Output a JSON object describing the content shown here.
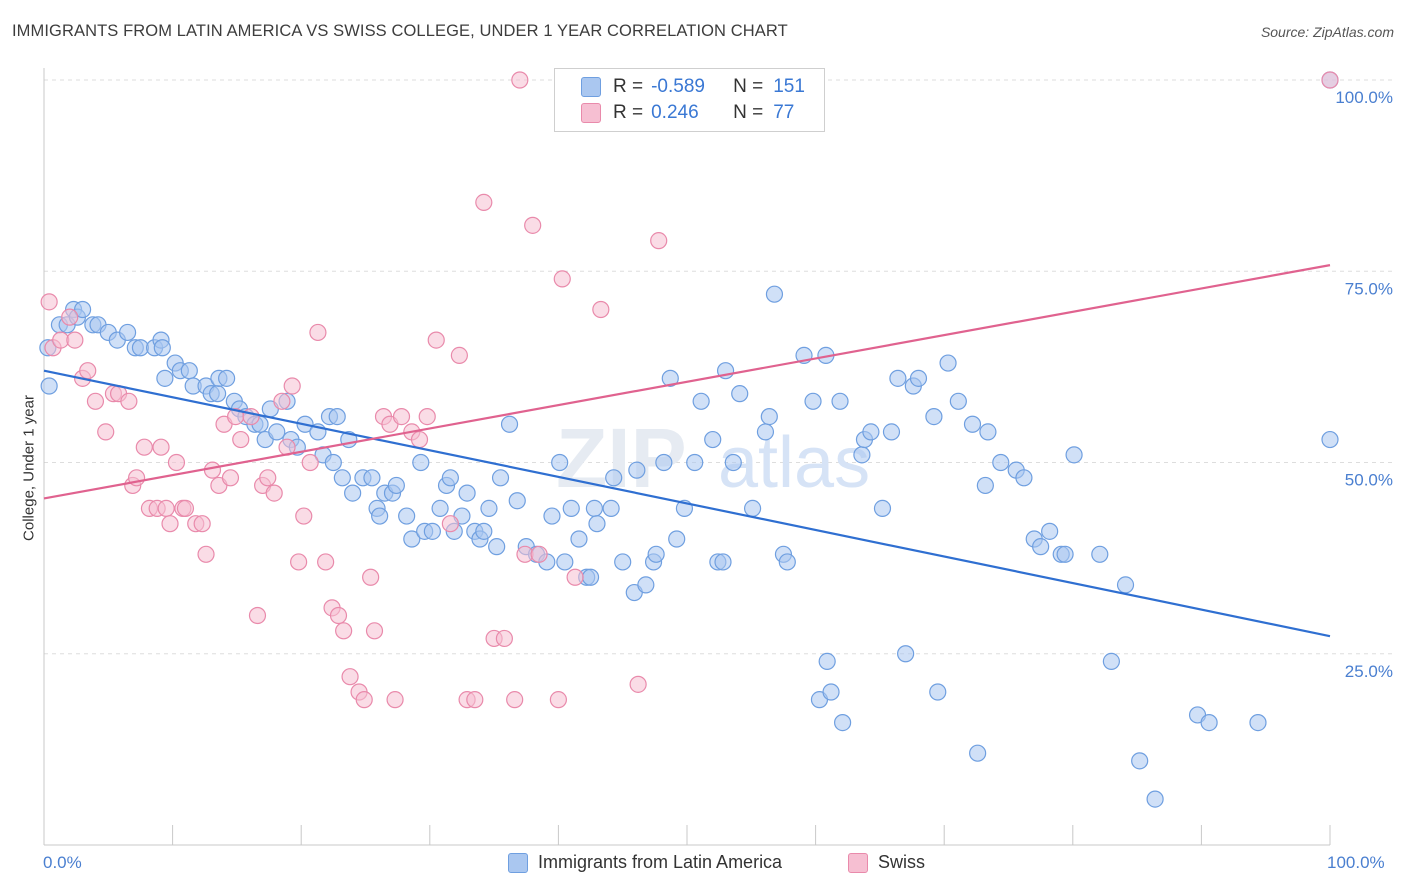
{
  "header": {
    "title": "IMMIGRANTS FROM LATIN AMERICA VS SWISS COLLEGE, UNDER 1 YEAR CORRELATION CHART",
    "source": "Source: ZipAtlas.com"
  },
  "watermark": {
    "zip": "ZIP",
    "atlas": "atlas"
  },
  "legend": {
    "r_label": "R =",
    "n_label": "N =",
    "rows": [
      {
        "r": "-0.589",
        "n": "151"
      },
      {
        "r": "0.246",
        "n": "77"
      }
    ]
  },
  "axes": {
    "x_min_label": "0.0%",
    "x_max_label": "100.0%"
  },
  "colors": {
    "blue_fill": "#aac7f0",
    "blue_stroke": "#6f9fe0",
    "blue_line": "#2f6fd1",
    "pink_fill": "#f6bfd2",
    "pink_stroke": "#e98aab",
    "pink_line": "#e0628f",
    "grid": "#dddddd",
    "tick_label": "#4a7fd0"
  },
  "chart_data": {
    "type": "scatter",
    "title": "IMMIGRANTS FROM LATIN AMERICA VS SWISS COLLEGE, UNDER 1 YEAR CORRELATION CHART",
    "xlabel": "",
    "ylabel": "College, Under 1 year",
    "xlim": [
      0,
      100
    ],
    "ylim": [
      0,
      100
    ],
    "y_ticks": [
      {
        "value": 25,
        "label": "25.0%"
      },
      {
        "value": 50,
        "label": "50.0%"
      },
      {
        "value": 75,
        "label": "75.0%"
      },
      {
        "value": 100,
        "label": "100.0%"
      }
    ],
    "grid": true,
    "legend_placement": "top-center",
    "series": [
      {
        "name": "Immigrants from Latin America",
        "color": "blue",
        "r": -0.589,
        "n": 151,
        "trend": {
          "x": [
            0,
            100
          ],
          "y": [
            62.0,
            27.3
          ]
        },
        "points": [
          [
            0.3,
            65
          ],
          [
            0.4,
            60
          ],
          [
            1.2,
            68
          ],
          [
            1.8,
            68
          ],
          [
            2.3,
            70
          ],
          [
            2.6,
            69
          ],
          [
            3.0,
            70
          ],
          [
            3.8,
            68
          ],
          [
            4.2,
            68
          ],
          [
            5.0,
            67
          ],
          [
            5.7,
            66
          ],
          [
            6.5,
            67
          ],
          [
            7.1,
            65
          ],
          [
            7.5,
            65
          ],
          [
            8.6,
            65
          ],
          [
            9.1,
            66
          ],
          [
            9.2,
            65
          ],
          [
            9.4,
            61
          ],
          [
            10.2,
            63
          ],
          [
            10.6,
            62
          ],
          [
            11.3,
            62
          ],
          [
            11.6,
            60
          ],
          [
            12.6,
            60
          ],
          [
            13.0,
            59
          ],
          [
            13.5,
            59
          ],
          [
            13.6,
            61
          ],
          [
            14.2,
            61
          ],
          [
            14.8,
            58
          ],
          [
            15.2,
            57
          ],
          [
            15.7,
            56
          ],
          [
            16.4,
            55
          ],
          [
            16.8,
            55
          ],
          [
            17.2,
            53
          ],
          [
            17.6,
            57
          ],
          [
            18.1,
            54
          ],
          [
            18.9,
            58
          ],
          [
            19.2,
            53
          ],
          [
            19.7,
            52
          ],
          [
            20.3,
            55
          ],
          [
            21.3,
            54
          ],
          [
            21.7,
            51
          ],
          [
            22.2,
            56
          ],
          [
            22.5,
            50
          ],
          [
            22.8,
            56
          ],
          [
            23.2,
            48
          ],
          [
            23.7,
            53
          ],
          [
            24.0,
            46
          ],
          [
            24.8,
            48
          ],
          [
            25.5,
            48
          ],
          [
            25.9,
            44
          ],
          [
            26.1,
            43
          ],
          [
            26.5,
            46
          ],
          [
            27.1,
            46
          ],
          [
            27.4,
            47
          ],
          [
            28.2,
            43
          ],
          [
            28.6,
            40
          ],
          [
            29.3,
            50
          ],
          [
            29.6,
            41
          ],
          [
            30.2,
            41
          ],
          [
            30.8,
            44
          ],
          [
            31.3,
            47
          ],
          [
            31.6,
            48
          ],
          [
            31.9,
            41
          ],
          [
            32.5,
            43
          ],
          [
            32.9,
            46
          ],
          [
            33.5,
            41
          ],
          [
            33.9,
            40
          ],
          [
            34.2,
            41
          ],
          [
            34.6,
            44
          ],
          [
            35.2,
            39
          ],
          [
            35.5,
            48
          ],
          [
            36.2,
            55
          ],
          [
            36.8,
            45
          ],
          [
            37.5,
            39
          ],
          [
            38.3,
            38
          ],
          [
            39.1,
            37
          ],
          [
            39.5,
            43
          ],
          [
            40.1,
            50
          ],
          [
            40.5,
            37
          ],
          [
            41.0,
            44
          ],
          [
            41.6,
            40
          ],
          [
            42.2,
            35
          ],
          [
            42.5,
            35
          ],
          [
            42.8,
            44
          ],
          [
            43.0,
            42
          ],
          [
            44.1,
            44
          ],
          [
            44.3,
            48
          ],
          [
            45.0,
            37
          ],
          [
            45.9,
            33
          ],
          [
            46.1,
            49
          ],
          [
            46.8,
            34
          ],
          [
            47.4,
            37
          ],
          [
            47.6,
            38
          ],
          [
            48.2,
            50
          ],
          [
            48.7,
            61
          ],
          [
            49.2,
            40
          ],
          [
            49.8,
            44
          ],
          [
            50.6,
            50
          ],
          [
            51.1,
            58
          ],
          [
            52.0,
            53
          ],
          [
            52.4,
            37
          ],
          [
            52.8,
            37
          ],
          [
            53.0,
            62
          ],
          [
            53.6,
            50
          ],
          [
            54.1,
            59
          ],
          [
            55.1,
            44
          ],
          [
            56.1,
            54
          ],
          [
            56.4,
            56
          ],
          [
            56.8,
            72
          ],
          [
            57.5,
            38
          ],
          [
            57.8,
            37
          ],
          [
            59.1,
            64
          ],
          [
            59.8,
            58
          ],
          [
            60.3,
            19
          ],
          [
            60.8,
            64
          ],
          [
            60.9,
            24
          ],
          [
            61.2,
            20
          ],
          [
            61.9,
            58
          ],
          [
            62.1,
            16
          ],
          [
            63.6,
            51
          ],
          [
            63.8,
            53
          ],
          [
            64.3,
            54
          ],
          [
            65.2,
            44
          ],
          [
            65.9,
            54
          ],
          [
            66.4,
            61
          ],
          [
            67.0,
            25
          ],
          [
            67.6,
            60
          ],
          [
            68.0,
            61
          ],
          [
            69.2,
            56
          ],
          [
            69.5,
            20
          ],
          [
            70.3,
            63
          ],
          [
            71.1,
            58
          ],
          [
            72.2,
            55
          ],
          [
            72.6,
            12
          ],
          [
            73.2,
            47
          ],
          [
            73.4,
            54
          ],
          [
            74.4,
            50
          ],
          [
            75.6,
            49
          ],
          [
            76.2,
            48
          ],
          [
            77.0,
            40
          ],
          [
            77.5,
            39
          ],
          [
            78.2,
            41
          ],
          [
            79.1,
            38
          ],
          [
            79.4,
            38
          ],
          [
            80.1,
            51
          ],
          [
            82.1,
            38
          ],
          [
            83.0,
            24
          ],
          [
            84.1,
            34
          ],
          [
            85.2,
            11
          ],
          [
            86.4,
            6
          ],
          [
            89.7,
            17
          ],
          [
            90.6,
            16
          ],
          [
            94.4,
            16
          ],
          [
            100.0,
            53
          ],
          [
            100.0,
            100
          ]
        ]
      },
      {
        "name": "Swiss",
        "color": "pink",
        "r": 0.246,
        "n": 77,
        "trend": {
          "x": [
            0,
            100
          ],
          "y": [
            45.3,
            75.8
          ]
        },
        "points": [
          [
            0.4,
            71
          ],
          [
            0.7,
            65
          ],
          [
            1.3,
            66
          ],
          [
            2.0,
            69
          ],
          [
            2.4,
            66
          ],
          [
            3.0,
            61
          ],
          [
            3.4,
            62
          ],
          [
            4.0,
            58
          ],
          [
            4.8,
            54
          ],
          [
            5.4,
            59
          ],
          [
            5.8,
            59
          ],
          [
            6.6,
            58
          ],
          [
            6.9,
            47
          ],
          [
            7.2,
            48
          ],
          [
            7.8,
            52
          ],
          [
            8.2,
            44
          ],
          [
            8.8,
            44
          ],
          [
            9.1,
            52
          ],
          [
            9.5,
            44
          ],
          [
            9.8,
            42
          ],
          [
            10.3,
            50
          ],
          [
            10.8,
            44
          ],
          [
            11.0,
            44
          ],
          [
            11.8,
            42
          ],
          [
            12.3,
            42
          ],
          [
            12.6,
            38
          ],
          [
            13.1,
            49
          ],
          [
            13.6,
            47
          ],
          [
            14.0,
            55
          ],
          [
            14.5,
            48
          ],
          [
            14.9,
            56
          ],
          [
            15.3,
            53
          ],
          [
            16.1,
            56
          ],
          [
            16.6,
            30
          ],
          [
            17.0,
            47
          ],
          [
            17.4,
            48
          ],
          [
            17.9,
            46
          ],
          [
            18.5,
            58
          ],
          [
            18.9,
            52
          ],
          [
            19.3,
            60
          ],
          [
            19.8,
            37
          ],
          [
            20.2,
            43
          ],
          [
            20.7,
            50
          ],
          [
            21.3,
            67
          ],
          [
            21.9,
            37
          ],
          [
            22.4,
            31
          ],
          [
            22.9,
            30
          ],
          [
            23.3,
            28
          ],
          [
            23.8,
            22
          ],
          [
            24.5,
            20
          ],
          [
            24.9,
            19
          ],
          [
            25.4,
            35
          ],
          [
            25.7,
            28
          ],
          [
            26.4,
            56
          ],
          [
            26.9,
            55
          ],
          [
            27.3,
            19
          ],
          [
            27.8,
            56
          ],
          [
            28.6,
            54
          ],
          [
            29.2,
            53
          ],
          [
            29.8,
            56
          ],
          [
            30.5,
            66
          ],
          [
            31.6,
            42
          ],
          [
            32.3,
            64
          ],
          [
            32.9,
            19
          ],
          [
            33.5,
            19
          ],
          [
            34.2,
            84
          ],
          [
            35.0,
            27
          ],
          [
            35.8,
            27
          ],
          [
            36.6,
            19
          ],
          [
            37.0,
            100
          ],
          [
            37.4,
            38
          ],
          [
            38.0,
            81
          ],
          [
            38.5,
            38
          ],
          [
            40.0,
            19
          ],
          [
            40.3,
            74
          ],
          [
            41.3,
            35
          ],
          [
            43.3,
            70
          ],
          [
            46.2,
            21
          ],
          [
            47.8,
            79
          ],
          [
            100.0,
            100
          ]
        ]
      }
    ]
  }
}
